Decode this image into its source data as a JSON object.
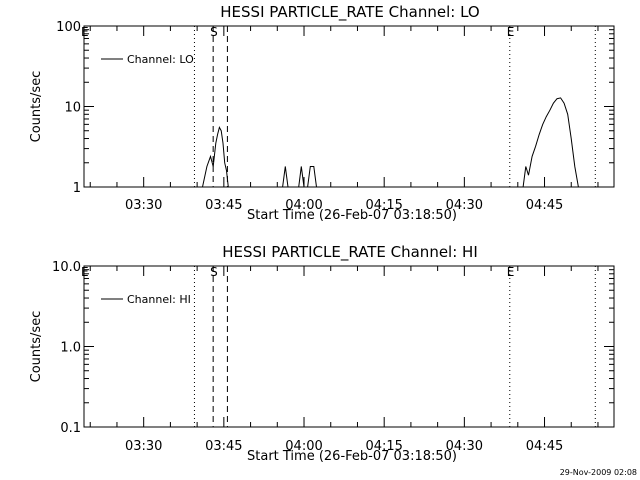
{
  "footer_timestamp": "29-Nov-2009 02:08",
  "chart_data": [
    {
      "type": "line",
      "title": "HESSI PARTICLE_RATE Channel: LO",
      "xlabel": "Start Time (26-Feb-07 03:18:50)",
      "ylabel": "Counts/sec",
      "yscale": "log",
      "ylim": [
        1,
        100
      ],
      "y_ticks": [
        1,
        10,
        100
      ],
      "y_tick_labels": [
        "1",
        "10",
        "100"
      ],
      "xlim": [
        "03:18:50",
        "04:58:00"
      ],
      "x_ticks": [
        "03:30",
        "03:45",
        "04:00",
        "04:15",
        "04:30",
        "04:45"
      ],
      "legend": {
        "entries": [
          "Channel: LO"
        ],
        "placement": "top-left"
      },
      "markers": [
        {
          "label": "E",
          "time": "03:18:50",
          "style": "dotted",
          "drawn": false
        },
        {
          "label": "",
          "time": "03:39:30",
          "style": "dotted",
          "drawn": true
        },
        {
          "label": "S",
          "time": "03:43:00",
          "style": "dashed",
          "drawn": true
        },
        {
          "label": "",
          "time": "03:45:40",
          "style": "dashed",
          "drawn": true
        },
        {
          "label": "E",
          "time": "04:38:30",
          "style": "dotted",
          "drawn": true
        },
        {
          "label": "",
          "time": "04:54:30",
          "style": "dotted",
          "drawn": true
        }
      ],
      "series": [
        {
          "segments": [
            {
              "t": [
                "03:41:00",
                "03:41:50",
                "03:42:30",
                "03:43:00",
                "03:43:30",
                "03:43:50",
                "03:44:10",
                "03:44:30",
                "03:44:50",
                "03:45:10",
                "03:45:30",
                "03:45:50"
              ],
              "v": [
                1,
                1.8,
                2.4,
                1.8,
                3.5,
                4.5,
                5.5,
                5.0,
                3.5,
                2.0,
                1.6,
                1
              ]
            },
            {
              "t": [
                "03:56:00",
                "03:56:30",
                "03:57:00"
              ],
              "v": [
                1,
                1.8,
                1
              ]
            },
            {
              "t": [
                "03:59:00",
                "03:59:30",
                "04:00:00"
              ],
              "v": [
                1,
                1.8,
                1
              ]
            },
            {
              "t": [
                "04:00:40",
                "04:01:10",
                "04:01:50",
                "04:02:20"
              ],
              "v": [
                1,
                1.8,
                1.8,
                1
              ]
            },
            {
              "t": [
                "04:41:00",
                "04:41:30",
                "04:42:00",
                "04:42:40",
                "04:43:20",
                "04:44:00",
                "04:44:40",
                "04:45:20",
                "04:46:00",
                "04:46:40",
                "04:47:20",
                "04:48:00",
                "04:48:40",
                "04:49:20",
                "04:50:00",
                "04:50:40",
                "04:51:20"
              ],
              "v": [
                1,
                1.8,
                1.4,
                2.4,
                3.2,
                4.5,
                6.0,
                7.5,
                9.0,
                11.0,
                12.5,
                12.8,
                11.0,
                8.0,
                4.0,
                1.8,
                1
              ]
            }
          ]
        }
      ]
    },
    {
      "type": "line",
      "title": "HESSI PARTICLE_RATE Channel: HI",
      "xlabel": "Start Time (26-Feb-07 03:18:50)",
      "ylabel": "Counts/sec",
      "yscale": "log",
      "ylim": [
        0.1,
        10
      ],
      "y_ticks": [
        0.1,
        1,
        10
      ],
      "y_tick_labels": [
        "0.1",
        "1.0",
        "10.0"
      ],
      "xlim": [
        "03:18:50",
        "04:58:00"
      ],
      "x_ticks": [
        "03:30",
        "03:45",
        "04:00",
        "04:15",
        "04:30",
        "04:45"
      ],
      "legend": {
        "entries": [
          "Channel: HI"
        ],
        "placement": "top-left"
      },
      "markers": [
        {
          "label": "E",
          "time": "03:18:50",
          "style": "dotted",
          "drawn": false
        },
        {
          "label": "",
          "time": "03:39:30",
          "style": "dotted",
          "drawn": true
        },
        {
          "label": "S",
          "time": "03:43:00",
          "style": "dashed",
          "drawn": true
        },
        {
          "label": "",
          "time": "03:45:40",
          "style": "dashed",
          "drawn": true
        },
        {
          "label": "E",
          "time": "04:38:30",
          "style": "dotted",
          "drawn": true
        },
        {
          "label": "",
          "time": "04:54:30",
          "style": "dotted",
          "drawn": true
        }
      ],
      "series": [
        {
          "segments": []
        }
      ]
    }
  ]
}
